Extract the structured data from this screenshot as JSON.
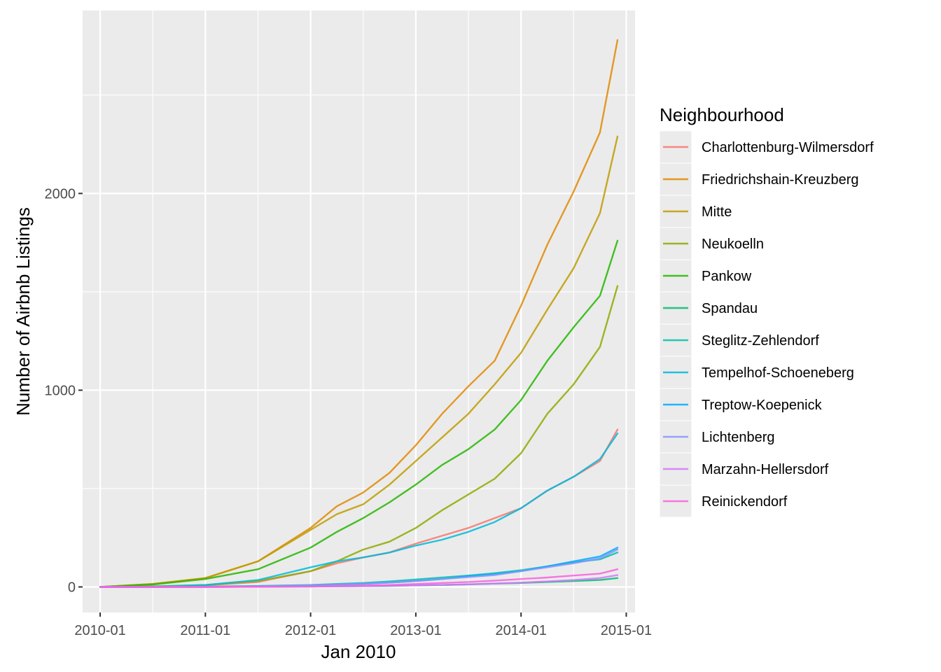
{
  "chart_data": {
    "type": "line",
    "title": "",
    "xlabel": "Jan 2010",
    "ylabel": "Number of Airbnb Listings",
    "x_ticks": [
      "2010-01",
      "2011-01",
      "2012-01",
      "2013-01",
      "2014-01",
      "2015-01"
    ],
    "y_ticks": [
      0,
      1000,
      2000
    ],
    "xlim": [
      "2009-11",
      "2015-02"
    ],
    "ylim": [
      -130,
      2930
    ],
    "grid": true,
    "legend": {
      "title": "Neighbourhood",
      "placement": "right"
    },
    "x": [
      "2010-01",
      "2010-07",
      "2011-01",
      "2011-07",
      "2012-01",
      "2012-04",
      "2012-07",
      "2012-10",
      "2013-01",
      "2013-04",
      "2013-07",
      "2013-10",
      "2014-01",
      "2014-04",
      "2014-07",
      "2014-10",
      "2014-12"
    ],
    "series": [
      {
        "name": "Charlottenburg-Wilmersdorf",
        "color": "#F8766D",
        "values": [
          0,
          2,
          8,
          25,
          80,
          120,
          150,
          175,
          220,
          260,
          300,
          350,
          400,
          490,
          560,
          640,
          800
        ]
      },
      {
        "name": "Friedrichshain-Kreuzberg",
        "color": "#E18A00",
        "values": [
          0,
          15,
          45,
          130,
          300,
          410,
          480,
          580,
          720,
          880,
          1020,
          1150,
          1430,
          1740,
          2010,
          2310,
          2780
        ]
      },
      {
        "name": "Mitte",
        "color": "#BE9C00",
        "values": [
          0,
          15,
          45,
          130,
          290,
          370,
          420,
          520,
          640,
          760,
          880,
          1030,
          1190,
          1410,
          1620,
          1900,
          2290
        ]
      },
      {
        "name": "Neukoelln",
        "color": "#8CAB00",
        "values": [
          0,
          3,
          10,
          30,
          80,
          130,
          190,
          230,
          300,
          390,
          470,
          550,
          680,
          880,
          1030,
          1220,
          1530
        ]
      },
      {
        "name": "Pankow",
        "color": "#24B700",
        "values": [
          0,
          12,
          40,
          90,
          200,
          280,
          350,
          430,
          520,
          620,
          700,
          800,
          950,
          1150,
          1320,
          1480,
          1760
        ]
      },
      {
        "name": "Spandau",
        "color": "#00BE70",
        "values": [
          0,
          0,
          0,
          1,
          2,
          3,
          4,
          5,
          8,
          10,
          13,
          17,
          20,
          25,
          30,
          35,
          45
        ]
      },
      {
        "name": "Steglitz-Zehlendorf",
        "color": "#00C1AB",
        "values": [
          0,
          1,
          2,
          5,
          10,
          15,
          20,
          28,
          38,
          48,
          58,
          70,
          85,
          105,
          125,
          140,
          175
        ]
      },
      {
        "name": "Tempelhof-Schoeneberg",
        "color": "#00BBDA",
        "values": [
          0,
          2,
          10,
          35,
          100,
          130,
          150,
          175,
          210,
          240,
          280,
          330,
          400,
          490,
          560,
          650,
          780
        ]
      },
      {
        "name": "Treptow-Koepenick",
        "color": "#00ACFC",
        "values": [
          0,
          0,
          1,
          3,
          8,
          12,
          16,
          22,
          30,
          40,
          55,
          65,
          80,
          105,
          130,
          155,
          200
        ]
      },
      {
        "name": "Lichtenberg",
        "color": "#8B93FF",
        "values": [
          0,
          0,
          1,
          3,
          8,
          12,
          16,
          22,
          30,
          40,
          50,
          60,
          80,
          100,
          120,
          145,
          190
        ]
      },
      {
        "name": "Marzahn-Hellersdorf",
        "color": "#D575FE",
        "values": [
          0,
          0,
          0,
          1,
          2,
          3,
          4,
          6,
          8,
          10,
          13,
          17,
          22,
          28,
          35,
          45,
          60
        ]
      },
      {
        "name": "Reinickendorf",
        "color": "#F962DD",
        "values": [
          0,
          0,
          0,
          1,
          3,
          5,
          7,
          10,
          15,
          20,
          25,
          32,
          40,
          48,
          58,
          68,
          90
        ]
      }
    ]
  }
}
